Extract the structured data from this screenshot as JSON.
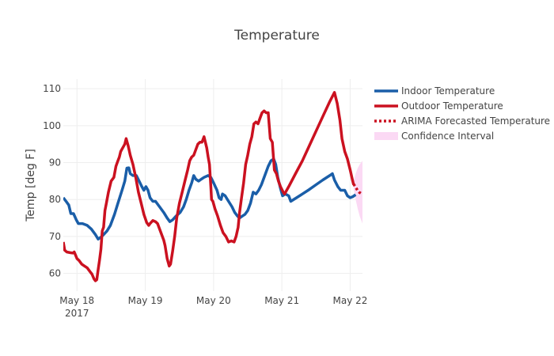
{
  "chart_data": {
    "type": "line",
    "title": "Temperature",
    "xlabel": "",
    "ylabel": "Temp [deg F]",
    "x_ticks": [
      {
        "x": 0.2,
        "label": "May 18",
        "sub": "2017"
      },
      {
        "x": 1.2,
        "label": "May 19",
        "sub": ""
      },
      {
        "x": 2.2,
        "label": "May 20",
        "sub": ""
      },
      {
        "x": 3.2,
        "label": "May 21",
        "sub": ""
      },
      {
        "x": 4.2,
        "label": "May 22",
        "sub": ""
      }
    ],
    "y_ticks": [
      60,
      70,
      80,
      90,
      100,
      110
    ],
    "xlim": [
      0,
      4.38
    ],
    "ylim": [
      55.2,
      112.6
    ],
    "grid": true,
    "legend_position": "right",
    "series": [
      {
        "name": "Indoor Temperature",
        "color": "#1a5ea8",
        "style": "solid",
        "points": [
          [
            0,
            80.5
          ],
          [
            0.04,
            79.5
          ],
          [
            0.08,
            78.5
          ],
          [
            0.11,
            76.2
          ],
          [
            0.15,
            76.2
          ],
          [
            0.19,
            74.5
          ],
          [
            0.22,
            73.5
          ],
          [
            0.28,
            73.5
          ],
          [
            0.35,
            73.0
          ],
          [
            0.41,
            72.0
          ],
          [
            0.47,
            70.5
          ],
          [
            0.51,
            69.3
          ],
          [
            0.55,
            69.8
          ],
          [
            0.59,
            70.5
          ],
          [
            0.64,
            71.5
          ],
          [
            0.69,
            73.0
          ],
          [
            0.75,
            76.0
          ],
          [
            0.8,
            79.0
          ],
          [
            0.86,
            82.5
          ],
          [
            0.9,
            85.0
          ],
          [
            0.93,
            88.5
          ],
          [
            0.96,
            88.6
          ],
          [
            0.98,
            87.0
          ],
          [
            1.02,
            86.5
          ],
          [
            1.07,
            86.5
          ],
          [
            1.11,
            85.0
          ],
          [
            1.15,
            83.5
          ],
          [
            1.18,
            82.5
          ],
          [
            1.21,
            83.5
          ],
          [
            1.24,
            82.5
          ],
          [
            1.27,
            80.5
          ],
          [
            1.31,
            79.5
          ],
          [
            1.35,
            79.5
          ],
          [
            1.41,
            78.0
          ],
          [
            1.47,
            76.5
          ],
          [
            1.52,
            75.0
          ],
          [
            1.56,
            74.0
          ],
          [
            1.6,
            74.5
          ],
          [
            1.65,
            75.5
          ],
          [
            1.71,
            76.5
          ],
          [
            1.76,
            78.0
          ],
          [
            1.8,
            80.0
          ],
          [
            1.84,
            82.5
          ],
          [
            1.88,
            84.5
          ],
          [
            1.91,
            86.5
          ],
          [
            1.94,
            85.5
          ],
          [
            1.98,
            85.0
          ],
          [
            2.02,
            85.5
          ],
          [
            2.06,
            86.0
          ],
          [
            2.12,
            86.5
          ],
          [
            2.16,
            86.0
          ],
          [
            2.2,
            84.5
          ],
          [
            2.25,
            82.5
          ],
          [
            2.28,
            80.5
          ],
          [
            2.31,
            80.0
          ],
          [
            2.33,
            81.5
          ],
          [
            2.37,
            81.0
          ],
          [
            2.42,
            79.5
          ],
          [
            2.47,
            78.0
          ],
          [
            2.51,
            76.5
          ],
          [
            2.55,
            75.5
          ],
          [
            2.58,
            75.0
          ],
          [
            2.62,
            75.5
          ],
          [
            2.66,
            76.0
          ],
          [
            2.7,
            77.0
          ],
          [
            2.74,
            79.0
          ],
          [
            2.78,
            82.0
          ],
          [
            2.82,
            81.5
          ],
          [
            2.86,
            82.5
          ],
          [
            2.9,
            84.0
          ],
          [
            2.95,
            86.5
          ],
          [
            3.0,
            89.0
          ],
          [
            3.04,
            90.5
          ],
          [
            3.08,
            91.0
          ],
          [
            3.11,
            89.5
          ],
          [
            3.14,
            86.0
          ],
          [
            3.18,
            83.0
          ],
          [
            3.21,
            81.0
          ],
          [
            3.25,
            81.5
          ],
          [
            3.3,
            81.0
          ],
          [
            3.33,
            79.5
          ],
          [
            3.4,
            80.3
          ],
          [
            3.5,
            81.5
          ],
          [
            3.6,
            82.7
          ],
          [
            3.7,
            84.0
          ],
          [
            3.8,
            85.3
          ],
          [
            3.9,
            86.5
          ],
          [
            3.94,
            87.0
          ],
          [
            3.97,
            85.3
          ],
          [
            4.02,
            83.5
          ],
          [
            4.06,
            82.5
          ],
          [
            4.12,
            82.5
          ],
          [
            4.16,
            81.0
          ],
          [
            4.2,
            80.5
          ],
          [
            4.24,
            80.8
          ],
          [
            4.28,
            81.3
          ]
        ]
      },
      {
        "name": "Outdoor Temperature",
        "color": "#cb1120",
        "style": "solid",
        "points": [
          [
            0,
            68.5
          ],
          [
            0.02,
            66.3
          ],
          [
            0.05,
            65.8
          ],
          [
            0.1,
            65.6
          ],
          [
            0.14,
            65.5
          ],
          [
            0.16,
            65.8
          ],
          [
            0.2,
            64.0
          ],
          [
            0.23,
            63.5
          ],
          [
            0.27,
            62.5
          ],
          [
            0.31,
            62.0
          ],
          [
            0.35,
            61.5
          ],
          [
            0.39,
            60.5
          ],
          [
            0.42,
            59.8
          ],
          [
            0.45,
            58.5
          ],
          [
            0.47,
            58.0
          ],
          [
            0.49,
            58.3
          ],
          [
            0.51,
            61.0
          ],
          [
            0.53,
            63.5
          ],
          [
            0.55,
            66.5
          ],
          [
            0.57,
            71.5
          ],
          [
            0.59,
            72.5
          ],
          [
            0.61,
            77.0
          ],
          [
            0.63,
            79.0
          ],
          [
            0.66,
            82.0
          ],
          [
            0.7,
            85.0
          ],
          [
            0.74,
            86.0
          ],
          [
            0.77,
            89.0
          ],
          [
            0.8,
            90.5
          ],
          [
            0.82,
            91.5
          ],
          [
            0.84,
            93.0
          ],
          [
            0.87,
            94.0
          ],
          [
            0.9,
            95.0
          ],
          [
            0.92,
            96.5
          ],
          [
            0.95,
            94.5
          ],
          [
            0.98,
            92.0
          ],
          [
            1.02,
            89.5
          ],
          [
            1.06,
            86.0
          ],
          [
            1.1,
            82.0
          ],
          [
            1.14,
            79.0
          ],
          [
            1.18,
            76.0
          ],
          [
            1.22,
            73.8
          ],
          [
            1.25,
            73.0
          ],
          [
            1.27,
            73.5
          ],
          [
            1.31,
            74.3
          ],
          [
            1.35,
            74.0
          ],
          [
            1.38,
            73.5
          ],
          [
            1.41,
            72.0
          ],
          [
            1.44,
            70.5
          ],
          [
            1.47,
            69.0
          ],
          [
            1.49,
            67.5
          ],
          [
            1.52,
            64.0
          ],
          [
            1.55,
            62.0
          ],
          [
            1.57,
            62.5
          ],
          [
            1.6,
            66.0
          ],
          [
            1.63,
            70.0
          ],
          [
            1.66,
            75.0
          ],
          [
            1.7,
            79.0
          ],
          [
            1.74,
            82.0
          ],
          [
            1.78,
            85.0
          ],
          [
            1.82,
            88.0
          ],
          [
            1.85,
            90.5
          ],
          [
            1.88,
            91.5
          ],
          [
            1.91,
            92.0
          ],
          [
            1.94,
            93.5
          ],
          [
            1.97,
            95.0
          ],
          [
            2.0,
            95.5
          ],
          [
            2.03,
            95.5
          ],
          [
            2.06,
            97.0
          ],
          [
            2.08,
            95.5
          ],
          [
            2.1,
            94.0
          ],
          [
            2.12,
            91.5
          ],
          [
            2.14,
            89.5
          ],
          [
            2.16,
            83.5
          ],
          [
            2.17,
            80.0
          ],
          [
            2.19,
            79.5
          ],
          [
            2.22,
            77.5
          ],
          [
            2.26,
            75.5
          ],
          [
            2.3,
            73.0
          ],
          [
            2.34,
            71.0
          ],
          [
            2.38,
            70.0
          ],
          [
            2.42,
            68.5
          ],
          [
            2.46,
            68.8
          ],
          [
            2.5,
            68.5
          ],
          [
            2.53,
            70.0
          ],
          [
            2.56,
            72.5
          ],
          [
            2.58,
            76.5
          ],
          [
            2.61,
            80.5
          ],
          [
            2.64,
            84.5
          ],
          [
            2.67,
            89.5
          ],
          [
            2.7,
            92.0
          ],
          [
            2.73,
            95.0
          ],
          [
            2.76,
            97.0
          ],
          [
            2.79,
            100.5
          ],
          [
            2.82,
            101.0
          ],
          [
            2.85,
            100.5
          ],
          [
            2.88,
            102.0
          ],
          [
            2.91,
            103.5
          ],
          [
            2.94,
            104.0
          ],
          [
            2.97,
            103.5
          ],
          [
            3.0,
            103.5
          ],
          [
            3.03,
            96.5
          ],
          [
            3.06,
            95.5
          ],
          [
            3.09,
            88.0
          ],
          [
            3.12,
            87.0
          ],
          [
            3.15,
            85.0
          ],
          [
            3.18,
            83.5
          ],
          [
            3.22,
            82.0
          ],
          [
            3.24,
            81.5
          ],
          [
            3.3,
            83.5
          ],
          [
            3.4,
            87.0
          ],
          [
            3.5,
            90.5
          ],
          [
            3.6,
            94.5
          ],
          [
            3.7,
            98.5
          ],
          [
            3.8,
            102.5
          ],
          [
            3.9,
            106.5
          ],
          [
            3.97,
            109.0
          ],
          [
            4.01,
            106.0
          ],
          [
            4.05,
            101.5
          ],
          [
            4.08,
            96.5
          ],
          [
            4.12,
            93.0
          ],
          [
            4.16,
            91.0
          ],
          [
            4.2,
            88.0
          ],
          [
            4.23,
            85.5
          ],
          [
            4.25,
            84.0
          ]
        ]
      },
      {
        "name": "ARIMA Forecasted Temperature",
        "color": "#cb1120",
        "style": "dotted",
        "points": [
          [
            4.25,
            84.2
          ],
          [
            4.28,
            83.3
          ],
          [
            4.31,
            82.4
          ],
          [
            4.33,
            82.0
          ],
          [
            4.36,
            81.6
          ]
        ]
      }
    ],
    "confidence_band": {
      "name": "Confidence Interval",
      "color": "#fbd9f4",
      "x": [
        4.25,
        4.28,
        4.31,
        4.34,
        4.38
      ],
      "upper": [
        85.0,
        87.0,
        88.5,
        89.5,
        90.5
      ],
      "lower": [
        83.0,
        80.0,
        77.5,
        75.5,
        73.5
      ]
    }
  }
}
